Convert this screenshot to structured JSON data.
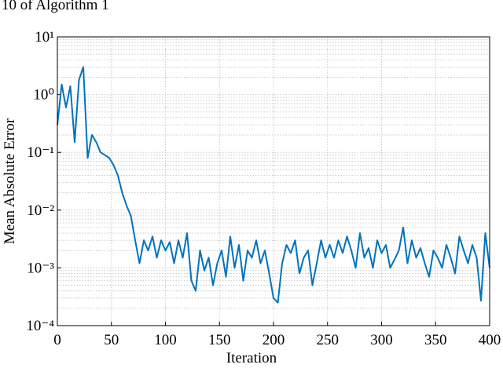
{
  "chart_data": {
    "type": "line",
    "title": "10 of Algorithm 1",
    "xlabel": "Iteration",
    "ylabel": "Mean Absolute Error",
    "color": "#0072bd",
    "yscale": "log",
    "grid": true,
    "minor_grid": true,
    "xlim": [
      0,
      400
    ],
    "xticks": [
      0,
      50,
      100,
      150,
      200,
      250,
      300,
      350,
      400
    ],
    "ylim": [
      0.0001,
      10
    ],
    "yticks": [
      {
        "value": 0.0001,
        "label": "10⁻⁴"
      },
      {
        "value": 0.001,
        "label": "10⁻³"
      },
      {
        "value": 0.01,
        "label": "10⁻²"
      },
      {
        "value": 0.1,
        "label": "10⁻¹"
      },
      {
        "value": 1,
        "label": "10⁰"
      },
      {
        "value": 10,
        "label": "10¹"
      }
    ],
    "x": [
      0,
      4,
      8,
      12,
      16,
      20,
      24,
      28,
      32,
      36,
      40,
      44,
      48,
      52,
      56,
      60,
      64,
      68,
      72,
      76,
      80,
      84,
      88,
      92,
      96,
      100,
      104,
      108,
      112,
      116,
      120,
      124,
      128,
      132,
      136,
      140,
      144,
      148,
      152,
      156,
      160,
      164,
      168,
      172,
      176,
      180,
      184,
      188,
      192,
      196,
      200,
      204,
      208,
      212,
      216,
      220,
      224,
      228,
      232,
      236,
      240,
      244,
      248,
      252,
      256,
      260,
      264,
      268,
      272,
      276,
      280,
      284,
      288,
      292,
      296,
      300,
      304,
      308,
      312,
      316,
      320,
      324,
      328,
      332,
      336,
      340,
      344,
      348,
      352,
      356,
      360,
      364,
      368,
      372,
      376,
      380,
      384,
      388,
      392,
      396,
      400
    ],
    "values": [
      0.3,
      1.5,
      0.6,
      1.4,
      0.15,
      1.8,
      3.0,
      0.08,
      0.2,
      0.15,
      0.1,
      0.09,
      0.08,
      0.06,
      0.04,
      0.02,
      0.012,
      0.008,
      0.003,
      0.0012,
      0.003,
      0.002,
      0.0035,
      0.0015,
      0.003,
      0.002,
      0.0028,
      0.0012,
      0.003,
      0.0015,
      0.004,
      0.0006,
      0.0004,
      0.002,
      0.0009,
      0.0015,
      0.0005,
      0.0012,
      0.002,
      0.0007,
      0.0035,
      0.001,
      0.0025,
      0.0006,
      0.002,
      0.0015,
      0.003,
      0.0012,
      0.002,
      0.0008,
      0.0003,
      0.00025,
      0.0012,
      0.0025,
      0.0018,
      0.003,
      0.0008,
      0.0015,
      0.002,
      0.0005,
      0.0012,
      0.003,
      0.0015,
      0.0025,
      0.0015,
      0.003,
      0.0018,
      0.0035,
      0.002,
      0.001,
      0.004,
      0.0015,
      0.0022,
      0.001,
      0.003,
      0.0018,
      0.0025,
      0.001,
      0.0014,
      0.002,
      0.005,
      0.0012,
      0.003,
      0.0015,
      0.0022,
      0.0012,
      0.0007,
      0.002,
      0.0015,
      0.001,
      0.0025,
      0.0015,
      0.0008,
      0.0035,
      0.002,
      0.0012,
      0.0025,
      0.0015,
      0.00027,
      0.004,
      0.001
    ]
  }
}
